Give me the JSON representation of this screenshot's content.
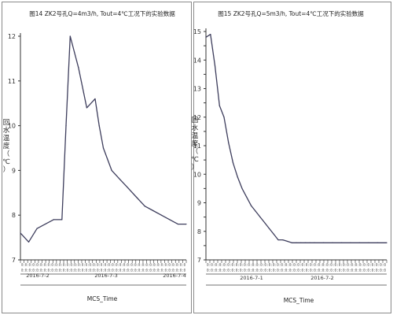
{
  "chart_data": [
    {
      "type": "line",
      "title": "图14  ZK2号孔Q=4m3/h, Tout=4℃工况下的实验数据",
      "xlabel": "MCS_Time",
      "ylabel": "回水温度（℃）",
      "ylim": [
        7,
        12
      ],
      "yticks": [
        7,
        8,
        9,
        10,
        11,
        12
      ],
      "date_labels": [
        "2016-7-2",
        "2016-7-3",
        "2016-7-4"
      ],
      "tick_noise": "0:0:0:0:0:0:0:0:0:0:0:0:0:0:0:0:0:0:0:0:0:0:0:0:0:0:0:0:0:0:0:0:0:0:0:0:0:0:0:0:0:0:0:0",
      "series": [
        {
          "x": [
            0,
            2,
            4,
            6,
            8,
            10,
            11,
            12,
            14,
            16,
            18,
            19,
            20,
            22,
            24,
            26,
            28,
            30,
            32,
            34,
            36,
            38,
            40
          ],
          "values": [
            7.6,
            7.4,
            7.7,
            7.8,
            7.9,
            7.9,
            10.0,
            12.0,
            11.3,
            10.4,
            10.6,
            10.0,
            9.5,
            9.0,
            8.8,
            8.6,
            8.4,
            8.2,
            8.1,
            8.0,
            7.9,
            7.8,
            7.8
          ]
        }
      ],
      "line_color": "#3d3d5c",
      "grid": false
    },
    {
      "type": "line",
      "title": "图15  ZK2号孔Q=5m3/h, Tout=4℃工况下的实验数据",
      "xlabel": "MCS_Time",
      "ylabel": "回水温度（℃）",
      "ylim": [
        7,
        15
      ],
      "yticks": [
        7,
        7.5,
        8,
        8.5,
        9,
        9.5,
        10,
        10.5,
        11,
        11.5,
        12,
        12.5,
        13,
        13.5,
        14,
        14.5,
        15
      ],
      "ytick_labels": [
        "7",
        "",
        "8",
        "",
        "9",
        "",
        "10",
        "",
        "11",
        "",
        "12",
        "",
        "13",
        "",
        "14",
        "",
        "15"
      ],
      "date_labels": [
        "2016-7-1",
        "2016-7-2"
      ],
      "tick_noise": "0:0:0:0:0:0:0:0:0:0:0:0:0:0:0:0:0:0:0:0:0:0:0:0:0:0:0:0:0:0:0:0:0:0:0:0:0:0:0:0:0:0:0:0",
      "series": [
        {
          "x": [
            0,
            1,
            2,
            3,
            4,
            5,
            6,
            7,
            8,
            9,
            10,
            11,
            12,
            13,
            14,
            15,
            16,
            17,
            18,
            19,
            20,
            21,
            22,
            23,
            24,
            26,
            28,
            30,
            32,
            34,
            36,
            38,
            40
          ],
          "values": [
            14.8,
            14.9,
            13.8,
            12.4,
            12.0,
            11.1,
            10.4,
            9.9,
            9.5,
            9.2,
            8.9,
            8.7,
            8.5,
            8.3,
            8.1,
            7.9,
            7.7,
            7.7,
            7.65,
            7.6,
            7.6,
            7.6,
            7.6,
            7.6,
            7.6,
            7.6,
            7.6,
            7.6,
            7.6,
            7.6,
            7.6,
            7.6,
            7.6
          ]
        }
      ],
      "line_color": "#3d3d5c",
      "grid": false
    }
  ]
}
